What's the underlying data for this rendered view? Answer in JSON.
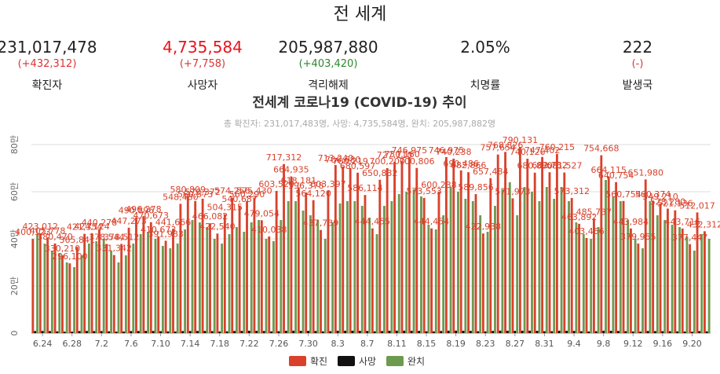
{
  "header": {
    "title": "전 세계"
  },
  "stats": [
    {
      "value": "231,017,478",
      "change": "(+432,312)",
      "label": "확진자"
    },
    {
      "value": "4,735,584",
      "change": "(+7,758)",
      "label": "사망자"
    },
    {
      "value": "205,987,880",
      "change": "(+403,420)",
      "label": "격리해제"
    },
    {
      "value": "2.05%",
      "change": "",
      "label": "치명률"
    },
    {
      "value": "222",
      "change": "(-)",
      "label": "발생국"
    }
  ],
  "chart_data": {
    "type": "bar",
    "title": "전세계 코로나19 (COVID-19) 추이",
    "subtitle": "총 확진자: 231,017,483명, 사망: 4,735,584명, 완치: 205,987,882명",
    "categories": [
      null,
      "6.24",
      null,
      null,
      null,
      "6.28",
      null,
      null,
      null,
      "7.2",
      null,
      null,
      null,
      "7.6",
      null,
      null,
      null,
      "7.10",
      null,
      null,
      null,
      "7.14",
      null,
      null,
      null,
      "7.18",
      null,
      null,
      null,
      "7.22",
      null,
      null,
      null,
      "7.26",
      null,
      null,
      null,
      "7.30",
      null,
      null,
      null,
      "8.3",
      null,
      null,
      null,
      "8.7",
      null,
      null,
      null,
      "8.11",
      null,
      null,
      null,
      "8.15",
      null,
      null,
      null,
      "8.19",
      null,
      null,
      null,
      "8.23",
      null,
      null,
      null,
      "8.27",
      null,
      null,
      null,
      "8.31",
      null,
      null,
      null,
      "9.4",
      null,
      null,
      null,
      "9.8",
      null,
      null,
      null,
      "9.12",
      null,
      null,
      null,
      "9.16",
      null,
      null,
      null,
      "9.20",
      null,
      null
    ],
    "ylim": [
      0,
      800000
    ],
    "yticks": [
      0,
      {
        "value": 200000,
        "label": "20만"
      },
      {
        "value": 400000,
        "label": "40만"
      },
      {
        "value": 600000,
        "label": "60만"
      },
      {
        "value": 800000,
        "label": "80만"
      }
    ],
    "grid": true,
    "series": [
      {
        "name": "확진",
        "color": "#d9412b",
        "values": [
          400123,
          423012,
          405778,
          380470,
          330210,
          296100,
          365841,
          421354,
          424124,
          440278,
          378544,
          331342,
          378512,
          447273,
          490896,
          496278,
          470673,
          410673,
          391983,
          441666,
          548480,
          580809,
          560573,
          570372,
          466082,
          422540,
          504315,
          574256,
          540687,
          560290,
          575430,
          479054,
          410038,
          603529,
          717312,
          664935,
          618181,
          596378,
          564120,
          437739,
          603397,
          713240,
          706680,
          700219,
          680597,
          586114,
          444455,
          650832,
          700200,
          727110,
          730160,
          746975,
          700806,
          573553,
          444454,
          600238,
          746975,
          740238,
          690486,
          682866,
          589856,
          422938,
          657484,
          757654,
          768826,
          571973,
          790131,
          740126,
          680880,
          747402,
          682732,
          760215,
          681527,
          573312,
          463892,
          403466,
          485737,
          754668,
          664115,
          640754,
          560754,
          443984,
          379955,
          651980,
          560374,
          549210,
          528280,
          521136,
          443716,
          377447,
          512017,
          432312
        ],
        "value_labels": [
          "400,123",
          "423,012",
          "405,778",
          "380,470",
          "330,210",
          "296,100",
          "365,841",
          "421,354",
          "424,124",
          "440,278",
          "378,544",
          "331,342",
          "378,512",
          "447,273",
          "490,896",
          "496,278",
          "470,673",
          "410,673",
          "391,983",
          "441,666",
          "548,480",
          "580,809",
          "560,573",
          "570,372",
          "466,082",
          "422,540",
          "504,315",
          "574,256",
          "540,687",
          "560,290",
          "575,430",
          "479,054",
          "410,038",
          "603,529",
          "717,312",
          "664,935",
          "618,181",
          "596,378",
          "564,120",
          "437,739",
          "603,397",
          "713,240",
          "706,680",
          "700,219",
          "680,597",
          "586,114",
          "444,455",
          "650,832",
          "700,200",
          "727,110",
          "730,160",
          "746,975",
          "700,806",
          "573,553",
          "444,454",
          "600,238",
          "746,975",
          "740,238",
          "690,486",
          "682,866",
          "589,856",
          "422,938",
          "657,484",
          "757,654",
          "768,826",
          "571,973",
          "790,131",
          "740,126",
          "680,880",
          "747,402",
          "682,732",
          "760,215",
          "681,527",
          "573,312",
          "463,892",
          "403,466",
          "485,737",
          "754,668",
          "664,115",
          "640,754",
          "560,754",
          "443,984",
          "379,955",
          "651,980",
          "560,374",
          "549,210",
          "528,280",
          "521,136",
          "443,716",
          "377,447",
          "512,017",
          "432,312"
        ]
      },
      {
        "name": "사망",
        "color": "#111111",
        "values": [
          9100,
          9300,
          8800,
          7600,
          6200,
          6500,
          8900,
          9400,
          8700,
          8900,
          7800,
          6400,
          6900,
          8800,
          9200,
          9600,
          9300,
          8400,
          7300,
          7100,
          8900,
          9100,
          9500,
          9400,
          8600,
          7200,
          7700,
          9300,
          9600,
          10200,
          9800,
          9100,
          7600,
          8200,
          10100,
          10400,
          10000,
          9800,
          9200,
          7500,
          8400,
          10300,
          10200,
          10400,
          9900,
          9400,
          7800,
          8900,
          10100,
          10600,
          10500,
          10200,
          9700,
          7900,
          7600,
          9300,
          10400,
          10700,
          10200,
          9800,
          8100,
          7400,
          9600,
          10500,
          10300,
          9800,
          10200,
          10400,
          9900,
          8200,
          8100,
          10300,
          10100,
          9500,
          8200,
          7000,
          8100,
          10300,
          9900,
          9400,
          8300,
          7100,
          6800,
          9200,
          8600,
          8400,
          8100,
          7600,
          6900,
          6100,
          8700,
          7758
        ]
      },
      {
        "name": "완치",
        "color": "#6e9a4f",
        "values": [
          420000,
          380000,
          350000,
          340000,
          300000,
          280000,
          330000,
          380000,
          390000,
          400000,
          350000,
          300000,
          330000,
          380000,
          420000,
          430000,
          400000,
          370000,
          360000,
          380000,
          440000,
          480000,
          470000,
          450000,
          400000,
          380000,
          420000,
          450000,
          430000,
          470000,
          480000,
          400000,
          390000,
          480000,
          560000,
          560000,
          520000,
          500000,
          480000,
          400000,
          470000,
          550000,
          560000,
          560000,
          540000,
          490000,
          420000,
          540000,
          560000,
          590000,
          600000,
          610000,
          580000,
          460000,
          440000,
          500000,
          620000,
          600000,
          570000,
          560000,
          500000,
          430000,
          540000,
          610000,
          640000,
          500000,
          620000,
          600000,
          560000,
          620000,
          570000,
          620000,
          560000,
          470000,
          420000,
          400000,
          450000,
          650000,
          580000,
          560000,
          480000,
          400000,
          360000,
          560000,
          500000,
          480000,
          460000,
          450000,
          410000,
          350000,
          420000,
          400000
        ]
      }
    ]
  }
}
